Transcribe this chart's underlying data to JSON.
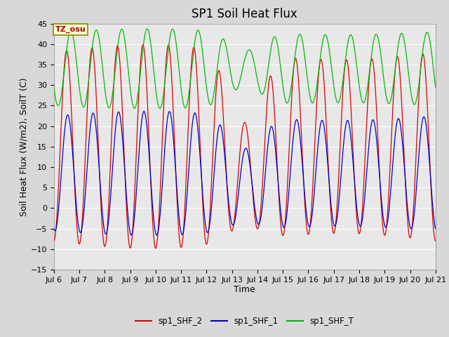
{
  "title": "SP1 Soil Heat Flux",
  "xlabel": "Time",
  "ylabel": "Soil Heat Flux (W/m2), SoilT (C)",
  "ylim": [
    -15,
    45
  ],
  "yticks": [
    -15,
    -10,
    -5,
    0,
    5,
    10,
    15,
    20,
    25,
    30,
    35,
    40,
    45
  ],
  "xlim_days": [
    6.0,
    21.0
  ],
  "xtick_days": [
    6,
    7,
    8,
    9,
    10,
    11,
    12,
    13,
    14,
    15,
    16,
    17,
    18,
    19,
    20,
    21
  ],
  "xtick_labels": [
    "Jul 6",
    "Jul 7",
    "Jul 8",
    "Jul 9",
    "Jul 10",
    "Jul 11",
    "Jul 12",
    "Jul 13",
    "Jul 14",
    "Jul 15",
    "Jul 16",
    "Jul 17",
    "Jul 18",
    "Jul 19",
    "Jul 20",
    "Jul 21"
  ],
  "color_shf2": "#dd0000",
  "color_shf1": "#0000cc",
  "color_shft": "#00bb00",
  "legend_labels": [
    "sp1_SHF_2",
    "sp1_SHF_1",
    "sp1_SHF_T"
  ],
  "tz_label": "TZ_osu",
  "bg_color": "#e8e8e8",
  "grid_color": "#ffffff",
  "title_fontsize": 12,
  "axis_fontsize": 9,
  "tick_fontsize": 8,
  "fig_width": 6.4,
  "fig_height": 4.8,
  "fig_dpi": 100
}
